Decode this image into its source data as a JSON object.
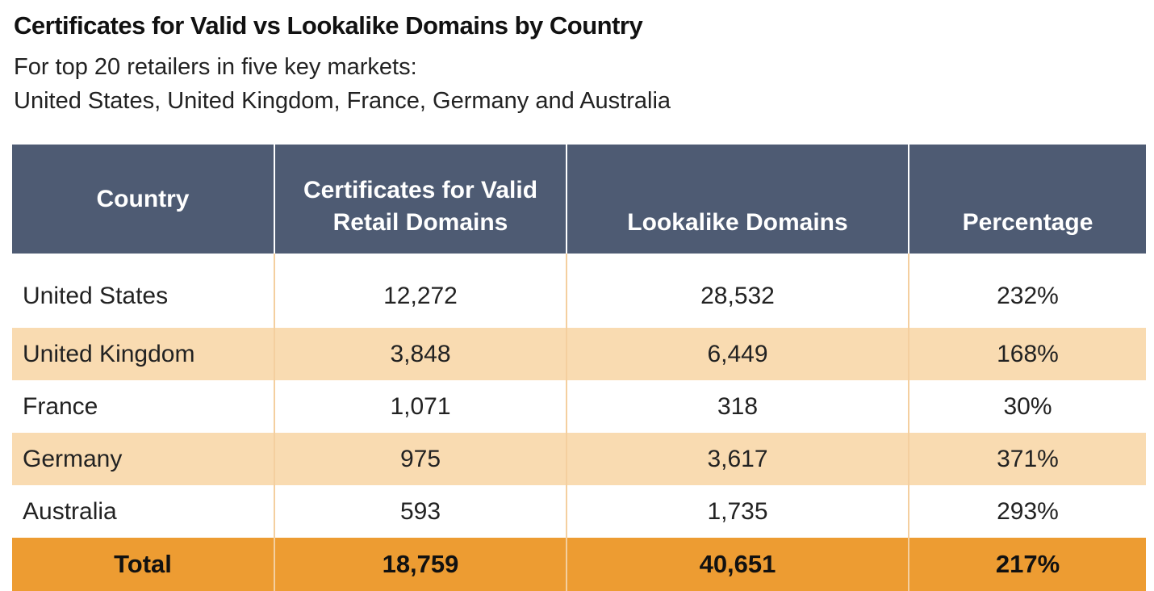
{
  "title": "Certificates for Valid vs Lookalike Domains by Country",
  "subtitle_line1": "For top 20 retailers in five key markets:",
  "subtitle_line2": "United States, United Kingdom, France, Germany and Australia",
  "colors": {
    "header_bg": "#4e5b73",
    "stripe_bg": "#f9dbb1",
    "total_bg": "#ed9c32",
    "divider": "#f4cf9f"
  },
  "chart_data": {
    "type": "table",
    "columns": [
      "Country",
      "Certificates for Valid Retail Domains",
      "Lookalike Domains",
      "Percentage"
    ],
    "header_lines": {
      "certificates": [
        "Certificates for Valid",
        "Retail Domains"
      ]
    },
    "rows": [
      {
        "country": "United States",
        "certificates": "12,272",
        "lookalike": "28,532",
        "percentage": "232%"
      },
      {
        "country": "United Kingdom",
        "certificates": "3,848",
        "lookalike": "6,449",
        "percentage": "168%"
      },
      {
        "country": "France",
        "certificates": "1,071",
        "lookalike": "318",
        "percentage": "30%"
      },
      {
        "country": "Germany",
        "certificates": "975",
        "lookalike": "3,617",
        "percentage": "371%"
      },
      {
        "country": "Australia",
        "certificates": "593",
        "lookalike": "1,735",
        "percentage": "293%"
      }
    ],
    "total": {
      "label": "Total",
      "certificates": "18,759",
      "lookalike": "40,651",
      "percentage": "217%"
    }
  }
}
